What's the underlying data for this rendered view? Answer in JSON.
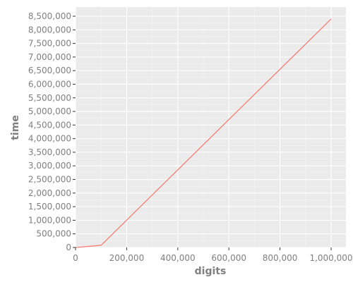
{
  "chart_data": {
    "type": "line",
    "xlabel": "digits",
    "ylabel": "time",
    "xlim": [
      0,
      1000000
    ],
    "ylim": [
      0,
      8500000
    ],
    "x_ticks": [
      0,
      200000,
      400000,
      600000,
      800000,
      1000000
    ],
    "x_tick_labels": [
      "0",
      "200,000",
      "400,000",
      "600,000",
      "800,000",
      "1,000,000"
    ],
    "y_ticks": [
      0,
      500000,
      1000000,
      1500000,
      2000000,
      2500000,
      3000000,
      3500000,
      4000000,
      4500000,
      5000000,
      5500000,
      6000000,
      6500000,
      7000000,
      7500000,
      8000000,
      8500000
    ],
    "y_tick_labels": [
      "0",
      "500,000",
      "1,000,000",
      "1,500,000",
      "2,000,000",
      "2,500,000",
      "3,000,000",
      "3,500,000",
      "4,000,000",
      "4,500,000",
      "5,000,000",
      "5,500,000",
      "6,000,000",
      "6,500,000",
      "7,000,000",
      "7,500,000",
      "8,000,000",
      "8,500,000"
    ],
    "grid": true,
    "series": [
      {
        "color": "#f8766d",
        "x": [
          0,
          10000,
          100000,
          1000000
        ],
        "y": [
          0,
          5000,
          80000,
          8400000
        ]
      }
    ]
  }
}
